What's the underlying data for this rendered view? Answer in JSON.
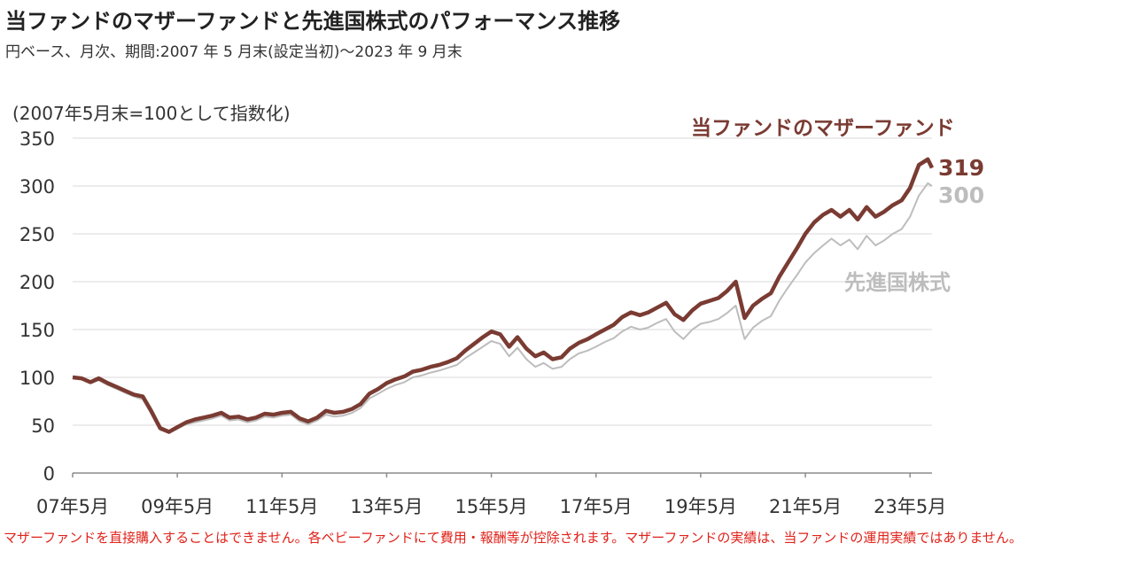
{
  "header": {
    "title": "当ファンドのマザーファンドと先進国株式のパフォーマンス推移",
    "subtitle": "円ベース、月次、期間:2007 年 5 月末(設定当初)〜2023 年 9 月末"
  },
  "footnote": "マザーファンドを直接購入することはできません。各ベビーファンドにて費用・報酬等が控除されます。マザーファンドの実績は、当ファンドの運用実績ではありません。",
  "colors": {
    "fund": "#7a3b32",
    "world": "#bdbdbd",
    "grid": "#d9d9d9",
    "footnote": "#e0221a"
  },
  "chart_data": {
    "type": "line",
    "index_note": "(2007年5月末=100として指数化)",
    "ylim": [
      0,
      350
    ],
    "yticks": [
      "0",
      "50",
      "100",
      "150",
      "200",
      "250",
      "300",
      "350"
    ],
    "xlim": [
      2007.33,
      2023.75
    ],
    "x_tick_labels": [
      "07年5月",
      "09年5月",
      "11年5月",
      "13年5月",
      "15年5月",
      "17年5月",
      "19年5月",
      "21年5月",
      "23年5月"
    ],
    "grid": "horizontal",
    "series": [
      {
        "name": "当ファンドのマザーファンド",
        "end_label": "319",
        "points": [
          [
            2007.33,
            100
          ],
          [
            2007.5,
            99
          ],
          [
            2007.67,
            95
          ],
          [
            2007.83,
            99
          ],
          [
            2008.0,
            94
          ],
          [
            2008.17,
            90
          ],
          [
            2008.33,
            86
          ],
          [
            2008.5,
            82
          ],
          [
            2008.67,
            80
          ],
          [
            2008.83,
            65
          ],
          [
            2009.0,
            47
          ],
          [
            2009.17,
            43
          ],
          [
            2009.33,
            48
          ],
          [
            2009.5,
            53
          ],
          [
            2009.67,
            56
          ],
          [
            2009.83,
            58
          ],
          [
            2010.0,
            60
          ],
          [
            2010.17,
            63
          ],
          [
            2010.33,
            58
          ],
          [
            2010.5,
            59
          ],
          [
            2010.67,
            56
          ],
          [
            2010.83,
            58
          ],
          [
            2011.0,
            62
          ],
          [
            2011.17,
            61
          ],
          [
            2011.33,
            63
          ],
          [
            2011.5,
            64
          ],
          [
            2011.67,
            57
          ],
          [
            2011.83,
            54
          ],
          [
            2012.0,
            58
          ],
          [
            2012.17,
            65
          ],
          [
            2012.33,
            63
          ],
          [
            2012.5,
            64
          ],
          [
            2012.67,
            67
          ],
          [
            2012.83,
            72
          ],
          [
            2013.0,
            83
          ],
          [
            2013.17,
            88
          ],
          [
            2013.33,
            94
          ],
          [
            2013.5,
            98
          ],
          [
            2013.67,
            101
          ],
          [
            2013.83,
            106
          ],
          [
            2014.0,
            108
          ],
          [
            2014.17,
            111
          ],
          [
            2014.33,
            113
          ],
          [
            2014.5,
            116
          ],
          [
            2014.67,
            120
          ],
          [
            2014.83,
            128
          ],
          [
            2015.0,
            135
          ],
          [
            2015.17,
            142
          ],
          [
            2015.33,
            148
          ],
          [
            2015.5,
            145
          ],
          [
            2015.67,
            132
          ],
          [
            2015.83,
            142
          ],
          [
            2016.0,
            130
          ],
          [
            2016.17,
            122
          ],
          [
            2016.33,
            126
          ],
          [
            2016.5,
            119
          ],
          [
            2016.67,
            121
          ],
          [
            2016.83,
            130
          ],
          [
            2017.0,
            136
          ],
          [
            2017.17,
            140
          ],
          [
            2017.33,
            145
          ],
          [
            2017.5,
            150
          ],
          [
            2017.67,
            155
          ],
          [
            2017.83,
            163
          ],
          [
            2018.0,
            168
          ],
          [
            2018.17,
            165
          ],
          [
            2018.33,
            168
          ],
          [
            2018.5,
            173
          ],
          [
            2018.67,
            178
          ],
          [
            2018.83,
            166
          ],
          [
            2019.0,
            160
          ],
          [
            2019.17,
            170
          ],
          [
            2019.33,
            177
          ],
          [
            2019.5,
            180
          ],
          [
            2019.67,
            183
          ],
          [
            2019.83,
            190
          ],
          [
            2020.0,
            200
          ],
          [
            2020.17,
            162
          ],
          [
            2020.33,
            175
          ],
          [
            2020.5,
            182
          ],
          [
            2020.67,
            188
          ],
          [
            2020.83,
            205
          ],
          [
            2021.0,
            220
          ],
          [
            2021.17,
            235
          ],
          [
            2021.33,
            250
          ],
          [
            2021.5,
            262
          ],
          [
            2021.67,
            270
          ],
          [
            2021.83,
            275
          ],
          [
            2022.0,
            268
          ],
          [
            2022.17,
            275
          ],
          [
            2022.33,
            265
          ],
          [
            2022.5,
            278
          ],
          [
            2022.67,
            268
          ],
          [
            2022.83,
            273
          ],
          [
            2023.0,
            280
          ],
          [
            2023.17,
            285
          ],
          [
            2023.33,
            298
          ],
          [
            2023.5,
            322
          ],
          [
            2023.67,
            328
          ],
          [
            2023.75,
            319
          ]
        ]
      },
      {
        "name": "先進国株式",
        "end_label": "300",
        "points": [
          [
            2007.33,
            100
          ],
          [
            2007.5,
            98
          ],
          [
            2007.67,
            94
          ],
          [
            2007.83,
            97
          ],
          [
            2008.0,
            92
          ],
          [
            2008.17,
            88
          ],
          [
            2008.33,
            84
          ],
          [
            2008.5,
            80
          ],
          [
            2008.67,
            77
          ],
          [
            2008.83,
            62
          ],
          [
            2009.0,
            45
          ],
          [
            2009.17,
            42
          ],
          [
            2009.33,
            46
          ],
          [
            2009.5,
            51
          ],
          [
            2009.67,
            53
          ],
          [
            2009.83,
            55
          ],
          [
            2010.0,
            57
          ],
          [
            2010.17,
            60
          ],
          [
            2010.33,
            55
          ],
          [
            2010.5,
            56
          ],
          [
            2010.67,
            53
          ],
          [
            2010.83,
            55
          ],
          [
            2011.0,
            59
          ],
          [
            2011.17,
            58
          ],
          [
            2011.33,
            60
          ],
          [
            2011.5,
            61
          ],
          [
            2011.67,
            54
          ],
          [
            2011.83,
            51
          ],
          [
            2012.0,
            55
          ],
          [
            2012.17,
            61
          ],
          [
            2012.33,
            59
          ],
          [
            2012.5,
            60
          ],
          [
            2012.67,
            63
          ],
          [
            2012.83,
            68
          ],
          [
            2013.0,
            78
          ],
          [
            2013.17,
            83
          ],
          [
            2013.33,
            88
          ],
          [
            2013.5,
            92
          ],
          [
            2013.67,
            95
          ],
          [
            2013.83,
            100
          ],
          [
            2014.0,
            102
          ],
          [
            2014.17,
            105
          ],
          [
            2014.33,
            107
          ],
          [
            2014.5,
            110
          ],
          [
            2014.67,
            113
          ],
          [
            2014.83,
            120
          ],
          [
            2015.0,
            126
          ],
          [
            2015.17,
            132
          ],
          [
            2015.33,
            138
          ],
          [
            2015.5,
            135
          ],
          [
            2015.67,
            122
          ],
          [
            2015.83,
            131
          ],
          [
            2016.0,
            119
          ],
          [
            2016.17,
            111
          ],
          [
            2016.33,
            115
          ],
          [
            2016.5,
            109
          ],
          [
            2016.67,
            111
          ],
          [
            2016.83,
            119
          ],
          [
            2017.0,
            125
          ],
          [
            2017.17,
            128
          ],
          [
            2017.33,
            132
          ],
          [
            2017.5,
            137
          ],
          [
            2017.67,
            141
          ],
          [
            2017.83,
            148
          ],
          [
            2018.0,
            153
          ],
          [
            2018.17,
            150
          ],
          [
            2018.33,
            152
          ],
          [
            2018.5,
            157
          ],
          [
            2018.67,
            161
          ],
          [
            2018.83,
            148
          ],
          [
            2019.0,
            140
          ],
          [
            2019.17,
            150
          ],
          [
            2019.33,
            156
          ],
          [
            2019.5,
            158
          ],
          [
            2019.67,
            161
          ],
          [
            2019.83,
            167
          ],
          [
            2020.0,
            175
          ],
          [
            2020.17,
            140
          ],
          [
            2020.33,
            152
          ],
          [
            2020.5,
            159
          ],
          [
            2020.67,
            164
          ],
          [
            2020.83,
            180
          ],
          [
            2021.0,
            194
          ],
          [
            2021.17,
            207
          ],
          [
            2021.33,
            220
          ],
          [
            2021.5,
            230
          ],
          [
            2021.67,
            238
          ],
          [
            2021.83,
            245
          ],
          [
            2022.0,
            238
          ],
          [
            2022.17,
            244
          ],
          [
            2022.33,
            234
          ],
          [
            2022.5,
            248
          ],
          [
            2022.67,
            238
          ],
          [
            2022.83,
            243
          ],
          [
            2023.0,
            250
          ],
          [
            2023.17,
            255
          ],
          [
            2023.33,
            268
          ],
          [
            2023.5,
            290
          ],
          [
            2023.67,
            303
          ],
          [
            2023.75,
            300
          ]
        ]
      }
    ]
  }
}
